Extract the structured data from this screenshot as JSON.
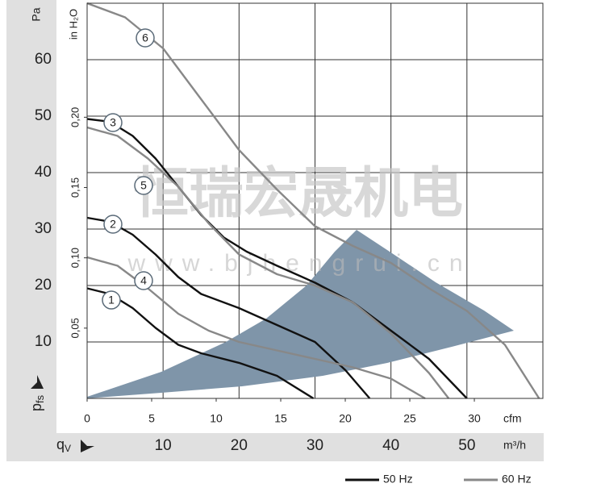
{
  "chart_data": {
    "type": "line",
    "x_label": "m³/h",
    "x2_label": "cfm",
    "y_label": "Pa",
    "y2_label": "in H₂O",
    "y_symbol": "p",
    "y_symbol_sub": "fs",
    "x_symbol": "q",
    "x_symbol_sub": "V",
    "xlim": [
      0,
      60
    ],
    "xticks": [
      10,
      20,
      30,
      40,
      50
    ],
    "x2lim": [
      0,
      35.31
    ],
    "x2ticks": [
      0,
      5,
      10,
      15,
      20,
      25,
      30
    ],
    "ylim": [
      0,
      70
    ],
    "yticks": [
      10,
      20,
      30,
      40,
      50,
      60
    ],
    "y2lim": [
      0,
      0.2811
    ],
    "y2ticks": [
      {
        "value": 0.05,
        "label": "0,05"
      },
      {
        "value": 0.1,
        "label": "0,10"
      },
      {
        "value": 0.15,
        "label": "0,15"
      },
      {
        "value": 0.2,
        "label": "0,20"
      }
    ],
    "grid": true,
    "series": [
      {
        "name": "1",
        "color": "#111111",
        "x": [
          0,
          3,
          6,
          9,
          12,
          15,
          20,
          25,
          29.8
        ],
        "values": [
          19.5,
          18.5,
          16,
          12.5,
          9.5,
          8,
          6.3,
          4,
          0
        ]
      },
      {
        "name": "2",
        "color": "#111111",
        "x": [
          0,
          3,
          6,
          9,
          12,
          15,
          20,
          25,
          30,
          34,
          37.2
        ],
        "values": [
          32,
          31.3,
          29,
          25.5,
          21.5,
          18.5,
          16,
          13,
          10,
          5,
          0
        ]
      },
      {
        "name": "3",
        "color": "#111111",
        "x": [
          0,
          3,
          6,
          9,
          12,
          15,
          18,
          21,
          25,
          30,
          35,
          40,
          45,
          50
        ],
        "values": [
          49.5,
          49,
          46.5,
          42.5,
          37.5,
          32.5,
          28.5,
          26,
          23.5,
          20.5,
          17,
          12,
          7,
          0
        ]
      },
      {
        "name": "4",
        "color": "#888888",
        "x": [
          0,
          4,
          8,
          12,
          16,
          20,
          25,
          30,
          35,
          40,
          44.5
        ],
        "values": [
          25,
          23.5,
          19.5,
          15,
          12,
          10,
          8.5,
          7,
          5.5,
          3.5,
          0
        ]
      },
      {
        "name": "5",
        "color": "#888888",
        "x": [
          0,
          4,
          8,
          12,
          16,
          20,
          25,
          30,
          35,
          40,
          45,
          47.6
        ],
        "values": [
          48,
          46.5,
          42.5,
          37.5,
          31,
          25.5,
          22,
          20,
          17,
          11.5,
          4.5,
          0
        ]
      },
      {
        "name": "6",
        "color": "#888888",
        "x": [
          0,
          5,
          10,
          15,
          20,
          25,
          30,
          35,
          40,
          45,
          50,
          55,
          59.5
        ],
        "values": [
          70,
          67.5,
          62,
          53,
          44,
          37,
          30.5,
          27,
          24,
          19.5,
          15.5,
          9.5,
          0
        ]
      }
    ],
    "legend": [
      {
        "label": "50 Hz",
        "color": "#111111"
      },
      {
        "label": "60 Hz",
        "color": "#888888"
      }
    ]
  },
  "watermark": {
    "brand": "恒瑞宏晟机电",
    "url": "www.bjhengrui.cn"
  }
}
